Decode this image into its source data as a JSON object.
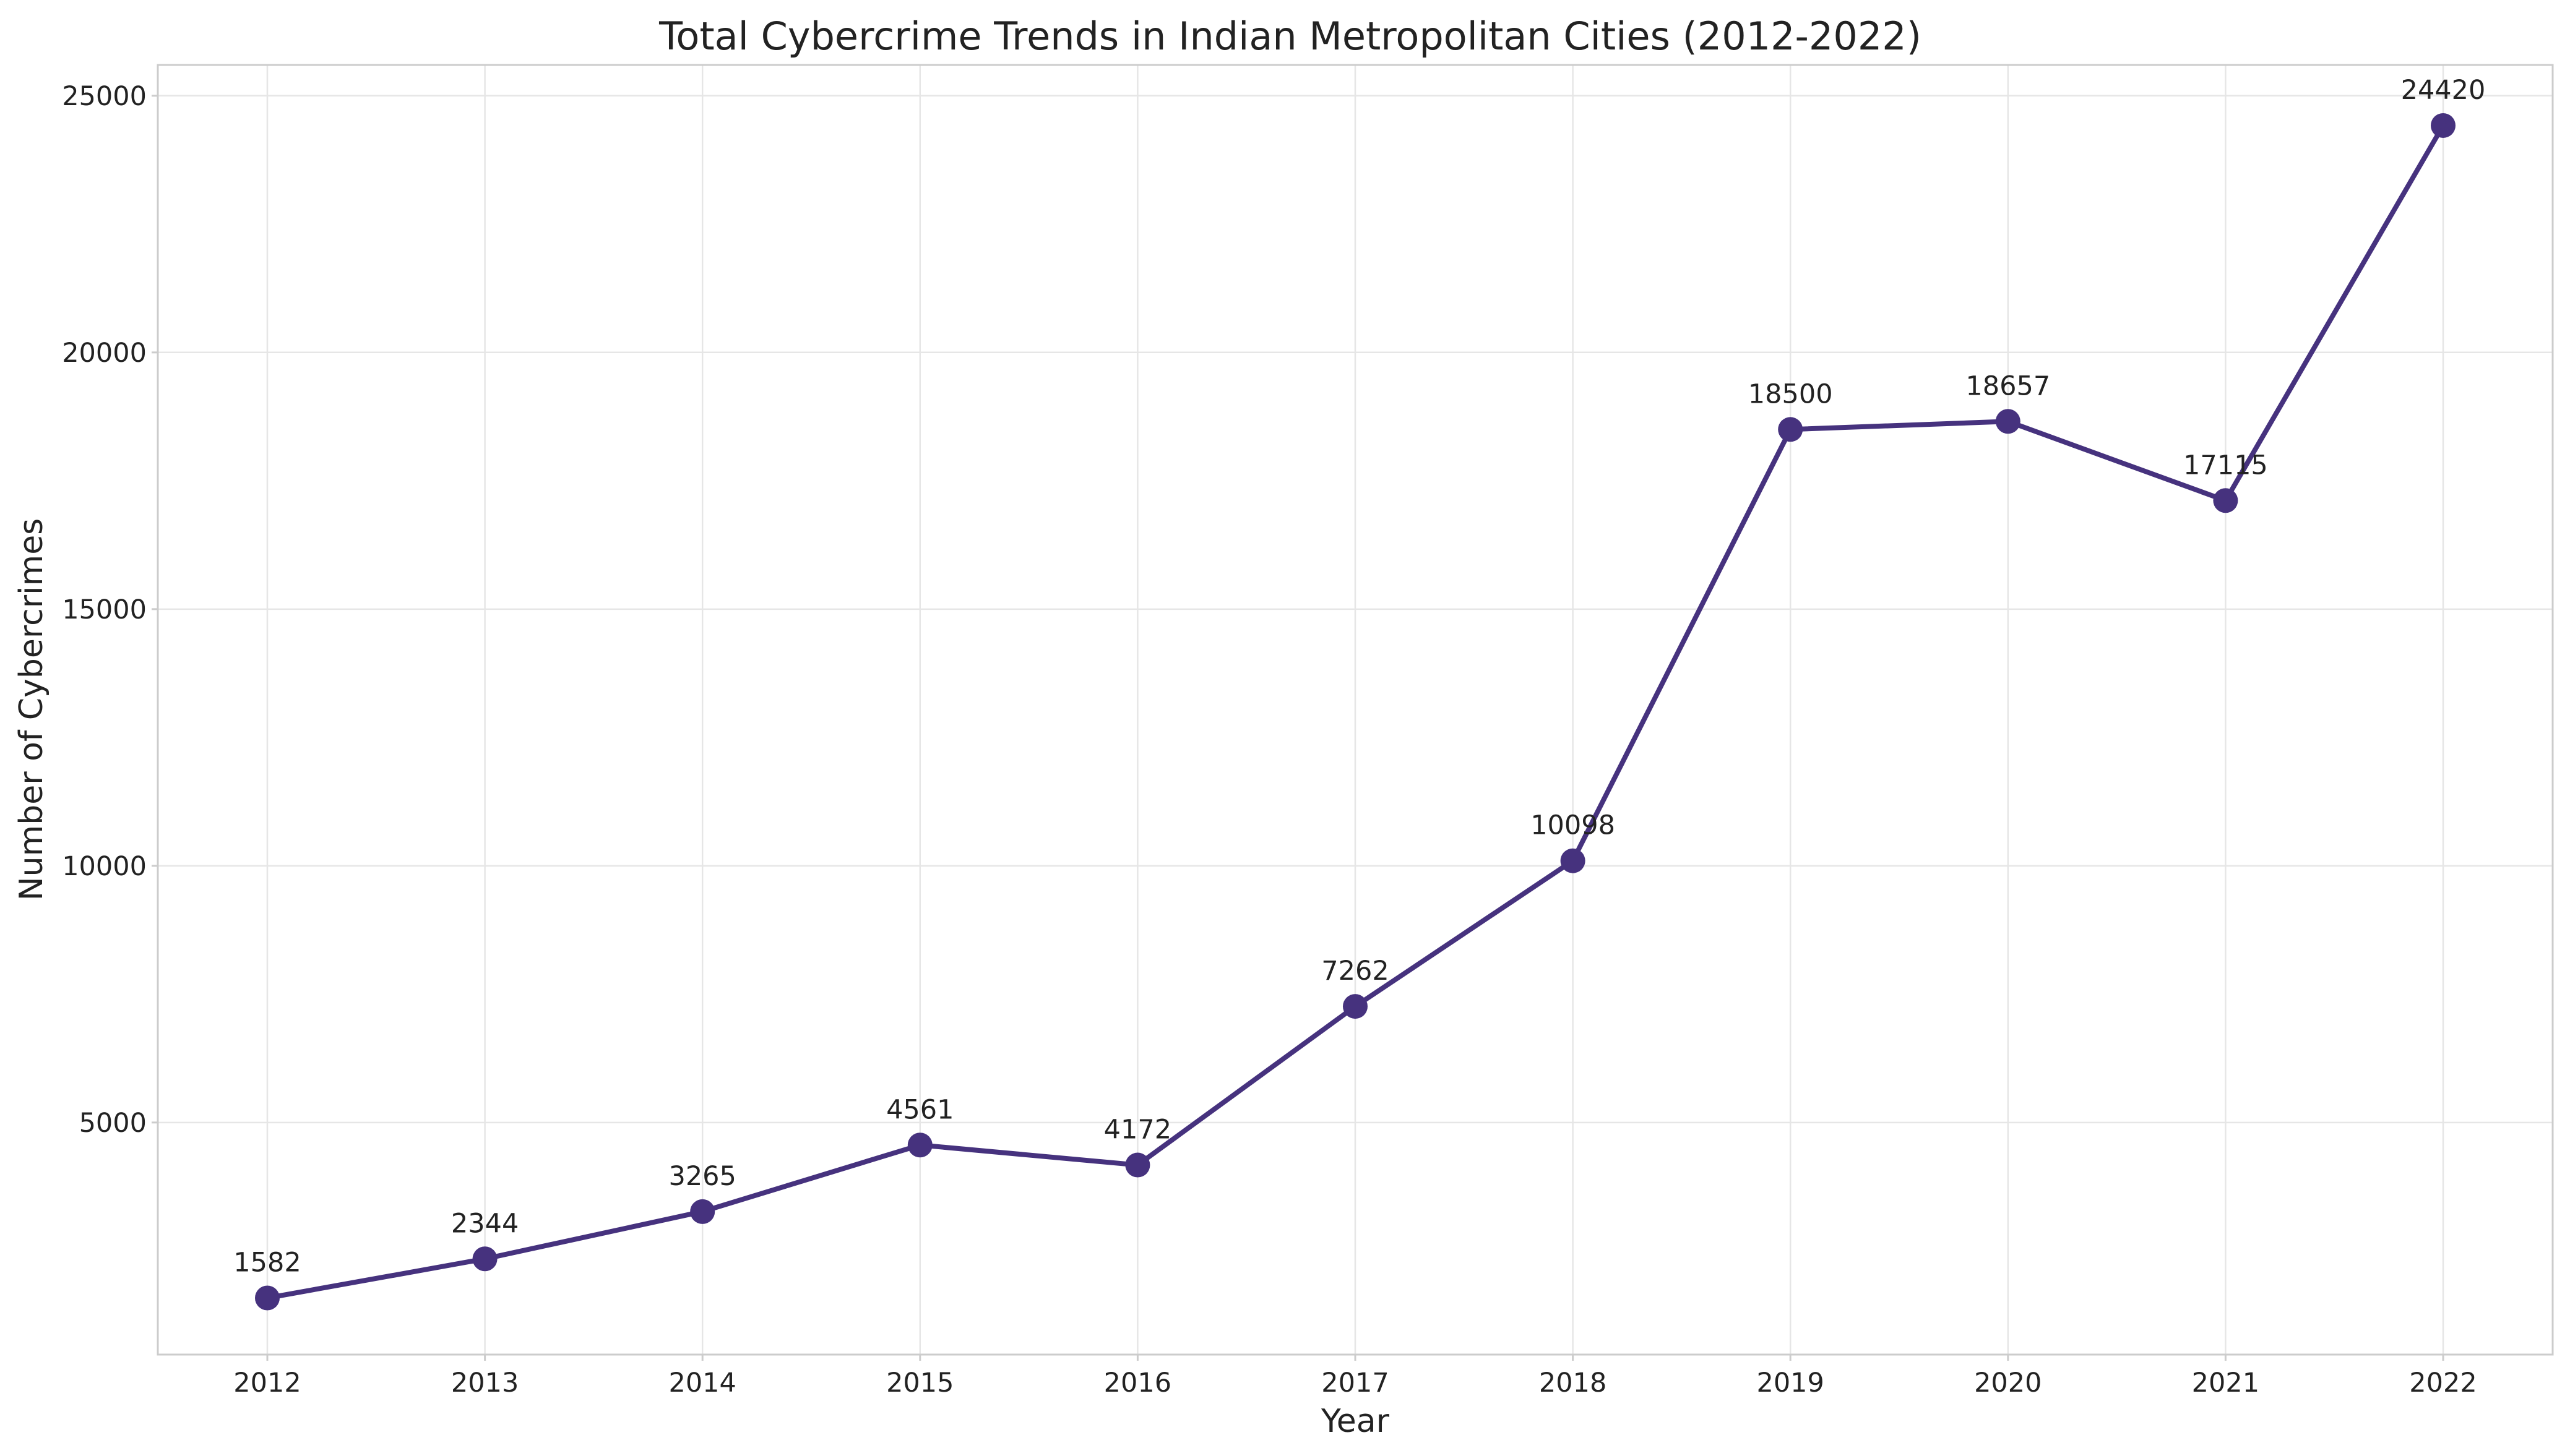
{
  "chart_data": {
    "type": "line",
    "title": "Total Cybercrime Trends in Indian Metropolitan Cities (2012-2022)",
    "xlabel": "Year",
    "ylabel": "Number of Cybercrimes",
    "x": [
      "2012",
      "2013",
      "2014",
      "2015",
      "2016",
      "2017",
      "2018",
      "2019",
      "2020",
      "2021",
      "2022"
    ],
    "series": [
      {
        "values": [
          1582,
          2344,
          3265,
          4561,
          4172,
          7262,
          10098,
          18500,
          18657,
          17115,
          24420
        ]
      }
    ],
    "data_labels": [
      "1582",
      "2344",
      "3265",
      "4561",
      "4172",
      "7262",
      "10098",
      "18500",
      "18657",
      "17115",
      "24420"
    ],
    "yticks": [
      5000,
      10000,
      15000,
      20000,
      25000
    ],
    "ytick_labels": [
      "5000",
      "10000",
      "15000",
      "20000",
      "25000"
    ],
    "ylim": [
      480,
      25600
    ],
    "grid": true,
    "line_color": "#46327e",
    "marker": "circle"
  }
}
